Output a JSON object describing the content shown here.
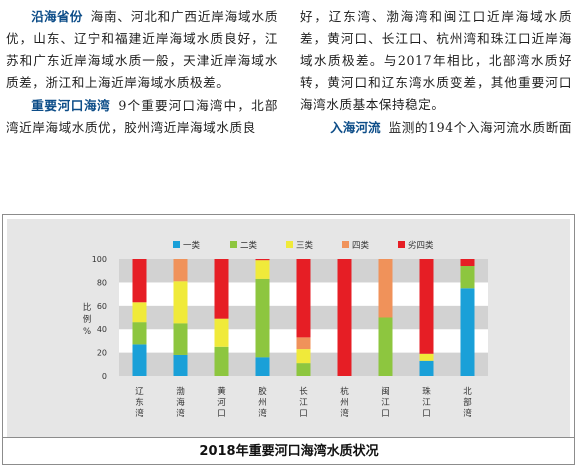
{
  "article": {
    "left": {
      "coastal_heading": "沿海省份",
      "coastal_text": "海南、河北和广西近岸海域水质优，山东、辽宁和福建近岸海域水质良好，江苏和广东近岸海域水质一般，天津近岸海域水质差，浙江和上海近岸海域水质极差。",
      "bays_heading": "重要河口海湾",
      "bays_text": "9个重要河口海湾中，北部湾近岸海域水质优，胶州湾近岸海域水质良"
    },
    "right": {
      "bays_cont": "好，辽东湾、渤海湾和闽江口近岸海域水质差，黄河口、长江口、杭州湾和珠江口近岸海域水质极差。与2017年相比，北部湾水质好转，黄河口和辽东湾水质变差，其他重要河口海湾水质基本保持稳定。",
      "rivers_heading": "入海河流",
      "rivers_text": "监测的194个入海河流水质断面"
    }
  },
  "figure": {
    "caption": "2018年重要河口海湾水质状况"
  },
  "chart_data": {
    "type": "bar",
    "stacked": true,
    "ylabel": "比例%",
    "ylim": [
      0,
      100
    ],
    "yticks": [
      0,
      20,
      40,
      60,
      80,
      100
    ],
    "categories": [
      "辽东湾",
      "渤海湾",
      "黄河口",
      "胶州湾",
      "长江口",
      "杭州湾",
      "闽江口",
      "珠江口",
      "北部湾"
    ],
    "series": [
      {
        "name": "一类",
        "color": "#1aa0d8",
        "values": [
          27,
          18,
          0,
          16,
          0,
          0,
          0,
          13,
          75
        ]
      },
      {
        "name": "二类",
        "color": "#8dc63f",
        "values": [
          19,
          27,
          25,
          67,
          11,
          0,
          50,
          0,
          19
        ]
      },
      {
        "name": "三类",
        "color": "#f0ea3a",
        "values": [
          17,
          36,
          24,
          16,
          12,
          0,
          0,
          6,
          0
        ]
      },
      {
        "name": "四类",
        "color": "#f0925a",
        "values": [
          0,
          19,
          0,
          0,
          10,
          0,
          50,
          0,
          0
        ]
      },
      {
        "name": "劣四类",
        "color": "#e61e25",
        "values": [
          37,
          0,
          51,
          1,
          67,
          100,
          0,
          81,
          6
        ]
      }
    ],
    "grid": "alternating horizontal bands",
    "legend_position": "top"
  }
}
